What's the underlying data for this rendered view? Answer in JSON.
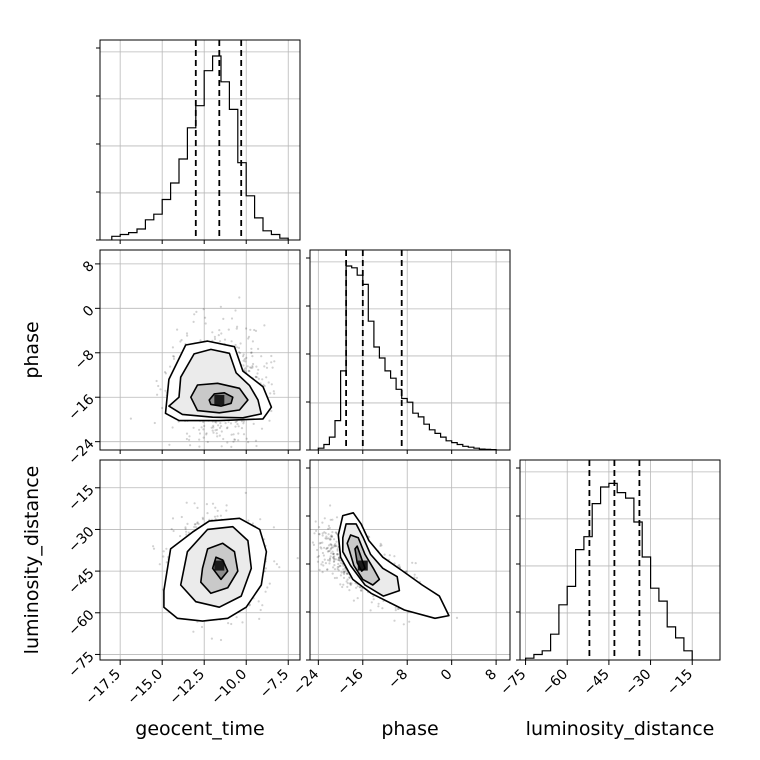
{
  "chart_data": {
    "type": "corner",
    "parameters": [
      "geocent_time",
      "phase",
      "luminosity_distance"
    ],
    "ranges": {
      "geocent_time": [
        -18.7,
        -6.8
      ],
      "phase": [
        -25.5,
        10.5
      ],
      "luminosity_distance": [
        -77,
        -5
      ]
    },
    "ticks": {
      "geocent_time": [
        -17.5,
        -15.0,
        -12.5,
        -10.0,
        -7.5
      ],
      "phase": [
        -24,
        -16,
        -8,
        0,
        8
      ],
      "luminosity_distance": [
        -75,
        -60,
        -45,
        -30,
        -15
      ]
    },
    "tick_labels": {
      "geocent_time": [
        "−17.5",
        "−15.0",
        "−12.5",
        "−10.0",
        "−7.5"
      ],
      "phase": [
        "−24",
        "−16",
        "−8",
        "0",
        "8"
      ],
      "luminosity_distance": [
        "−75",
        "−60",
        "−45",
        "−30",
        "−15"
      ]
    },
    "quantiles": {
      "geocent_time": [
        -13.0,
        -11.6,
        -10.3
      ],
      "phase": [
        -19.0,
        -16.0,
        -9.0
      ],
      "luminosity_distance": [
        -52,
        -43,
        -34
      ]
    },
    "histograms": {
      "geocent_time": {
        "edges": [
          -18.0,
          -17.5,
          -17.0,
          -16.5,
          -16.0,
          -15.5,
          -15.0,
          -14.5,
          -14.0,
          -13.5,
          -13.0,
          -12.5,
          -12.0,
          -11.5,
          -11.0,
          -10.5,
          -10.0,
          -9.5,
          -9.0,
          -8.5,
          -8.0,
          -7.5
        ],
        "counts": [
          0.02,
          0.03,
          0.04,
          0.06,
          0.11,
          0.14,
          0.22,
          0.31,
          0.44,
          0.61,
          0.73,
          0.92,
          1.0,
          0.86,
          0.71,
          0.42,
          0.24,
          0.12,
          0.05,
          0.03,
          0.01
        ]
      },
      "phase": {
        "edges": [
          -24,
          -23,
          -22,
          -21,
          -20,
          -19,
          -18,
          -17,
          -16,
          -15,
          -14,
          -13,
          -12,
          -11,
          -10,
          -9,
          -8,
          -7,
          -6,
          -5,
          -4,
          -3,
          -2,
          -1,
          0,
          1,
          2,
          3,
          4,
          5,
          6,
          7,
          8
        ],
        "counts": [
          0.01,
          0.03,
          0.07,
          0.16,
          0.43,
          1.0,
          0.99,
          0.95,
          0.9,
          0.7,
          0.56,
          0.5,
          0.43,
          0.39,
          0.33,
          0.28,
          0.26,
          0.2,
          0.18,
          0.14,
          0.11,
          0.09,
          0.07,
          0.05,
          0.04,
          0.03,
          0.02,
          0.015,
          0.01,
          0.005,
          0.003,
          0.002
        ]
      },
      "luminosity_distance": {
        "edges": [
          -75,
          -72,
          -69,
          -66,
          -63,
          -60,
          -57,
          -54,
          -51,
          -48,
          -45,
          -42,
          -39,
          -36,
          -33,
          -30,
          -27,
          -24,
          -21,
          -18,
          -15
        ],
        "counts": [
          0.01,
          0.03,
          0.05,
          0.14,
          0.3,
          0.4,
          0.6,
          0.67,
          0.85,
          0.94,
          0.96,
          0.91,
          0.88,
          0.75,
          0.56,
          0.39,
          0.32,
          0.18,
          0.12,
          0.05
        ]
      }
    },
    "pairs": [
      {
        "x": "geocent_time",
        "y": "phase",
        "center": [
          -11.6,
          -16.5
        ],
        "contours": [
          [
            [
              -12.2,
              -16.5
            ],
            [
              -11.9,
              -15.4
            ],
            [
              -11.3,
              -15.2
            ],
            [
              -10.8,
              -16.0
            ],
            [
              -10.9,
              -17.1
            ],
            [
              -11.5,
              -17.6
            ],
            [
              -12.1,
              -17.3
            ]
          ],
          [
            [
              -13.3,
              -16.0
            ],
            [
              -12.9,
              -13.8
            ],
            [
              -11.7,
              -13.5
            ],
            [
              -10.4,
              -14.4
            ],
            [
              -9.9,
              -16.5
            ],
            [
              -10.4,
              -18.3
            ],
            [
              -11.6,
              -18.8
            ],
            [
              -12.9,
              -18.4
            ]
          ],
          [
            [
              -14.0,
              -16.0
            ],
            [
              -13.9,
              -12.4
            ],
            [
              -13.1,
              -8.2
            ],
            [
              -12.1,
              -7.4
            ],
            [
              -11.0,
              -8.1
            ],
            [
              -10.6,
              -11.6
            ],
            [
              -9.8,
              -13.9
            ],
            [
              -9.3,
              -16.5
            ],
            [
              -9.1,
              -19.0
            ],
            [
              -10.2,
              -19.7
            ],
            [
              -12.0,
              -19.6
            ],
            [
              -13.8,
              -19.1
            ],
            [
              -14.6,
              -17.6
            ]
          ],
          [
            [
              -14.8,
              -18.9
            ],
            [
              -14.6,
              -12.8
            ],
            [
              -13.6,
              -6.6
            ],
            [
              -12.3,
              -5.9
            ],
            [
              -10.7,
              -6.9
            ],
            [
              -10.2,
              -11.3
            ],
            [
              -9.0,
              -14.1
            ],
            [
              -8.5,
              -17.8
            ],
            [
              -9.0,
              -19.9
            ],
            [
              -11.6,
              -20.2
            ],
            [
              -14.0,
              -20.2
            ]
          ]
        ]
      },
      {
        "x": "geocent_time",
        "y": "luminosity_distance",
        "center": [
          -11.6,
          -43
        ],
        "contours": [
          [
            [
              -12.0,
              -44
            ],
            [
              -11.8,
              -40
            ],
            [
              -11.4,
              -41
            ],
            [
              -11.1,
              -45
            ],
            [
              -11.5,
              -48
            ]
          ],
          [
            [
              -12.6,
              -44
            ],
            [
              -12.3,
              -37
            ],
            [
              -11.4,
              -35
            ],
            [
              -10.7,
              -38
            ],
            [
              -10.5,
              -45
            ],
            [
              -11.1,
              -51
            ],
            [
              -12.1,
              -53
            ],
            [
              -12.7,
              -49
            ]
          ],
          [
            [
              -13.9,
              -50
            ],
            [
              -13.5,
              -38
            ],
            [
              -12.3,
              -30
            ],
            [
              -10.8,
              -29
            ],
            [
              -9.9,
              -34
            ],
            [
              -9.7,
              -44
            ],
            [
              -10.3,
              -54
            ],
            [
              -11.6,
              -58
            ],
            [
              -13.0,
              -56
            ]
          ],
          [
            [
              -14.9,
              -52
            ],
            [
              -14.5,
              -37
            ],
            [
              -13.2,
              -31
            ],
            [
              -12.2,
              -27
            ],
            [
              -10.4,
              -26
            ],
            [
              -9.2,
              -30
            ],
            [
              -8.8,
              -38
            ],
            [
              -9.1,
              -50
            ],
            [
              -10.0,
              -58
            ],
            [
              -11.1,
              -62
            ],
            [
              -12.6,
              -63
            ],
            [
              -14.1,
              -62
            ],
            [
              -14.9,
              -58
            ]
          ]
        ]
      },
      {
        "x": "phase",
        "y": "luminosity_distance",
        "center": [
          -16.0,
          -43
        ],
        "contours": [
          [
            [
              -17.4,
              -37
            ],
            [
              -17.0,
              -36
            ],
            [
              -16.3,
              -40
            ],
            [
              -15.6,
              -44
            ],
            [
              -16.2,
              -45
            ],
            [
              -17.0,
              -42
            ]
          ],
          [
            [
              -18.8,
              -35
            ],
            [
              -18.2,
              -32
            ],
            [
              -16.8,
              -33
            ],
            [
              -15.6,
              -39
            ],
            [
              -14.1,
              -44
            ],
            [
              -13.0,
              -48
            ],
            [
              -14.2,
              -50
            ],
            [
              -16.0,
              -48
            ],
            [
              -17.6,
              -43
            ]
          ],
          [
            [
              -19.6,
              -33
            ],
            [
              -19.0,
              -28
            ],
            [
              -17.2,
              -28
            ],
            [
              -15.9,
              -33
            ],
            [
              -14.6,
              -39
            ],
            [
              -12.4,
              -44
            ],
            [
              -9.8,
              -47
            ],
            [
              -9.4,
              -52
            ],
            [
              -12.3,
              -54
            ],
            [
              -15.6,
              -50
            ],
            [
              -18.2,
              -43
            ],
            [
              -19.6,
              -38
            ]
          ],
          [
            [
              -20.4,
              -32
            ],
            [
              -19.6,
              -25
            ],
            [
              -17.7,
              -24
            ],
            [
              -16.3,
              -28
            ],
            [
              -14.9,
              -34
            ],
            [
              -12.4,
              -40
            ],
            [
              -8.8,
              -45
            ],
            [
              -5.3,
              -50
            ],
            [
              -2.2,
              -54
            ],
            [
              -0.5,
              -61
            ],
            [
              -3.0,
              -62
            ],
            [
              -8.5,
              -59
            ],
            [
              -14.5,
              -53
            ],
            [
              -17.8,
              -48
            ],
            [
              -20.0,
              -40
            ]
          ]
        ]
      }
    ],
    "grid": true
  }
}
